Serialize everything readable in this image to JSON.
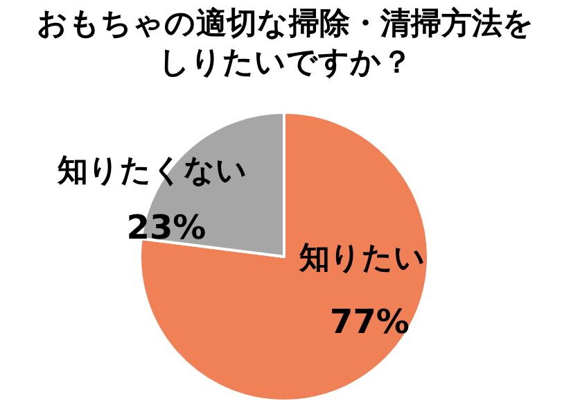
{
  "chart_data": {
    "type": "pie",
    "title": "おもちゃの適切な掃除・清掃方法をしりたいですか？",
    "categories": [
      "知りたい",
      "知りたくない"
    ],
    "values": [
      77,
      23
    ],
    "colors": [
      "#f08055",
      "#a6a6a6"
    ],
    "value_labels": [
      "77%",
      "23%"
    ]
  }
}
